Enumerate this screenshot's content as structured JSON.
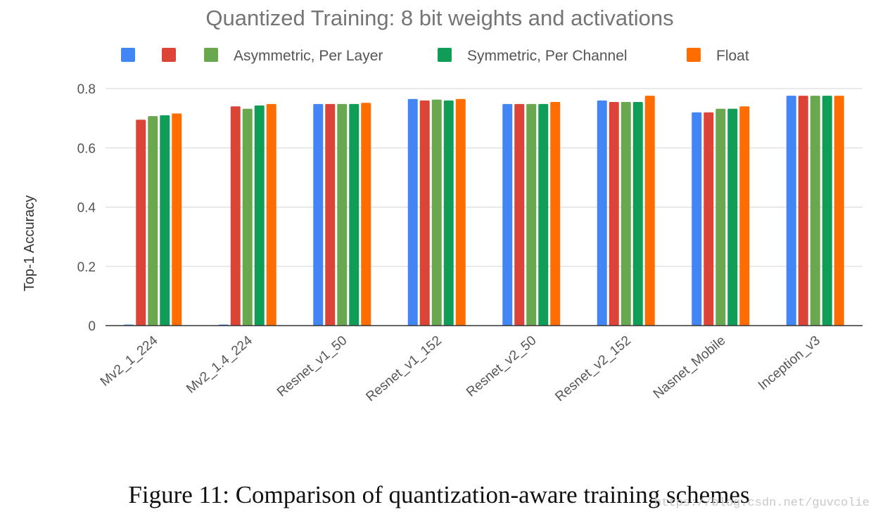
{
  "chart_data": {
    "type": "bar",
    "title": "Quantized Training: 8 bit weights and activations",
    "ylabel": "Top-1 Accuracy",
    "xlabel": "",
    "ylim": [
      0,
      0.8
    ],
    "yticks": [
      "0",
      "0.2",
      "0.4",
      "0.6",
      "0.8"
    ],
    "yticks_values": [
      0,
      0.2,
      0.4,
      0.6,
      0.8
    ],
    "grid": true,
    "legend_position": "top",
    "categories": [
      "Mv2_1_224",
      "Mv2_1.4_224",
      "Resnet_v1_50",
      "Resnet_v1_152",
      "Resnet_v2_50",
      "Resnet_v2_152",
      "Nasnet_Mobile",
      "Inception_v3"
    ],
    "series": [
      {
        "name": "",
        "color": "#4285f4",
        "values": [
          0.0,
          0.0,
          0.748,
          0.765,
          0.748,
          0.76,
          0.72,
          0.776
        ]
      },
      {
        "name": "",
        "color": "#db4437",
        "values": [
          0.695,
          0.74,
          0.748,
          0.76,
          0.748,
          0.755,
          0.72,
          0.776
        ]
      },
      {
        "name": "Asymmetric, Per Layer",
        "color": "#6aa84f",
        "values": [
          0.707,
          0.732,
          0.748,
          0.763,
          0.748,
          0.755,
          0.732,
          0.776
        ]
      },
      {
        "name": "Symmetric, Per Channel",
        "color": "#0f9d58",
        "values": [
          0.71,
          0.743,
          0.748,
          0.76,
          0.748,
          0.755,
          0.732,
          0.776
        ]
      },
      {
        "name": "Float",
        "color": "#ff6d00",
        "values": [
          0.716,
          0.748,
          0.752,
          0.765,
          0.755,
          0.776,
          0.74,
          0.776
        ]
      }
    ]
  },
  "caption": "Figure 11: Comparison of quantization-aware training schemes",
  "watermark": "https://blog.csdn.net/guvcolie"
}
